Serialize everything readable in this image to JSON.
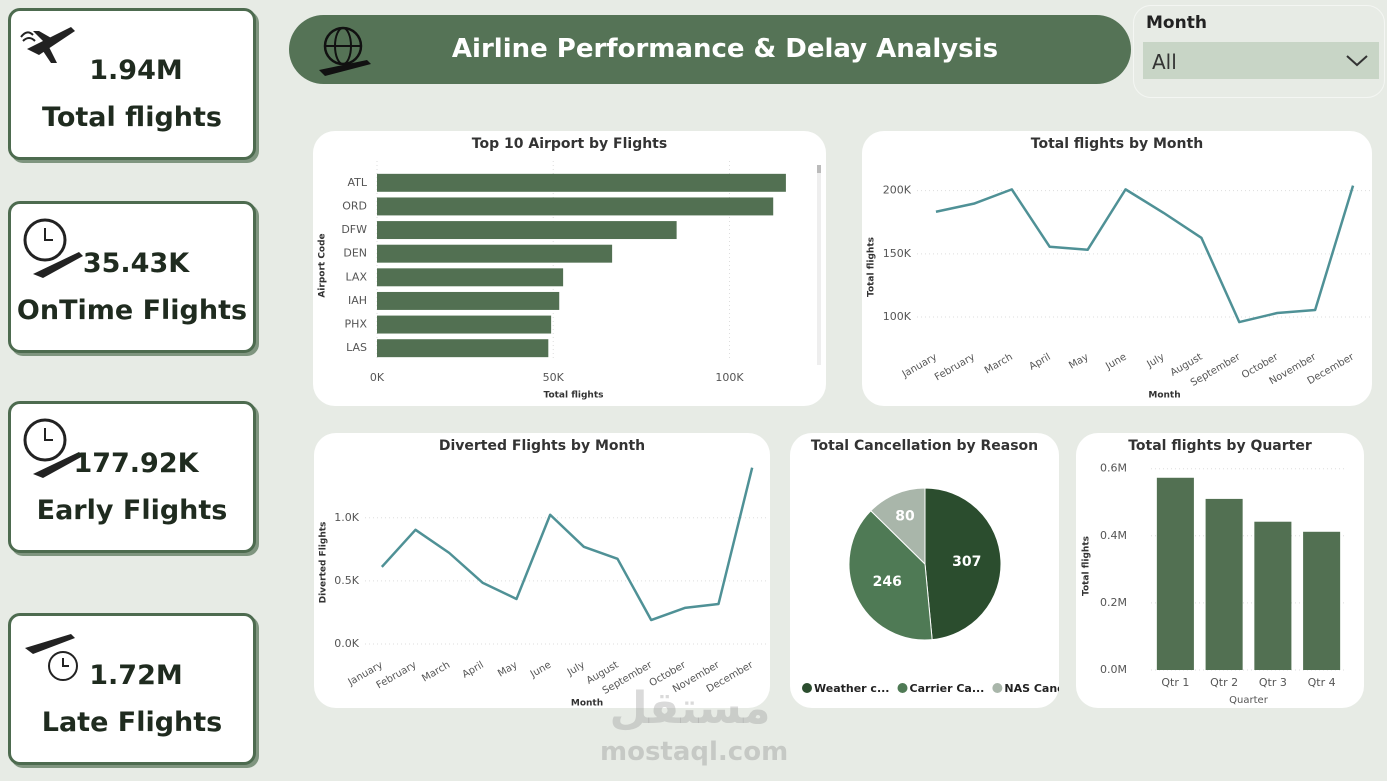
{
  "header": {
    "title": "Airline Performance & Delay Analysis"
  },
  "filter": {
    "label": "Month",
    "value": "All"
  },
  "cards": [
    {
      "value": "1.94M",
      "label": "Total flights"
    },
    {
      "value": "35.43K",
      "label": "OnTime Flights"
    },
    {
      "value": "177.92K",
      "label": "Early Flights"
    },
    {
      "value": "1.72M",
      "label": "Late Flights"
    }
  ],
  "watermark": {
    "arabic": "مستقل",
    "latin": "mostaql.com"
  },
  "chart_data": [
    {
      "type": "bar",
      "orientation": "horizontal",
      "title": "Top 10 Airport by Flights",
      "x_label": "Total flights",
      "y_label": "Airport Code",
      "categories": [
        "ATL",
        "ORD",
        "DFW",
        "DEN",
        "LAX",
        "IAH",
        "PHX",
        "LAS"
      ],
      "values": [
        116000,
        112400,
        85000,
        66700,
        52800,
        51700,
        49400,
        48600
      ],
      "color": "#527052",
      "xlim": [
        0,
        120000
      ],
      "xticks": [
        {
          "value": 0,
          "label": "0K"
        },
        {
          "value": 50000,
          "label": "50K"
        },
        {
          "value": 100000,
          "label": "100K"
        }
      ],
      "grid": true
    },
    {
      "type": "line",
      "title": "Total flights by Month",
      "x_label": "Month",
      "y_label": "Total flights",
      "categories": [
        "January",
        "February",
        "March",
        "April",
        "May",
        "June",
        "July",
        "August",
        "September",
        "October",
        "November",
        "December"
      ],
      "values": [
        183300,
        189700,
        201000,
        155600,
        153200,
        201000,
        182500,
        162700,
        96000,
        103200,
        105600,
        204000
      ],
      "color": "#4f9196",
      "ylim": [
        85000,
        210000
      ],
      "yticks": [
        {
          "value": 100000,
          "label": "100K"
        },
        {
          "value": 150000,
          "label": "150K"
        },
        {
          "value": 200000,
          "label": "200K"
        }
      ],
      "grid": true
    },
    {
      "type": "line",
      "title": "Diverted Flights by Month",
      "x_label": "Month",
      "y_label": "Diverted Flights",
      "categories": [
        "January",
        "February",
        "March",
        "April",
        "May",
        "June",
        "July",
        "August",
        "September",
        "October",
        "November",
        "December"
      ],
      "values": [
        611,
        905,
        722,
        484,
        357,
        1024,
        770,
        675,
        190,
        286,
        317,
        1397
      ],
      "color": "#4f9196",
      "ylim": [
        0,
        1450
      ],
      "yticks": [
        {
          "value": 0,
          "label": "0.0K"
        },
        {
          "value": 500,
          "label": "0.5K"
        },
        {
          "value": 1000,
          "label": "1.0K"
        }
      ],
      "grid": true
    },
    {
      "type": "pie",
      "title": "Total Cancellation by Reason",
      "categories": [
        "Weather c...",
        "Carrier Ca...",
        "NAS Canc..."
      ],
      "values": [
        307,
        246,
        80
      ],
      "colors": [
        "#2b4d2e",
        "#4f7a55",
        "#a9b6aa"
      ]
    },
    {
      "type": "bar",
      "orientation": "vertical",
      "title": "Total flights by Quarter",
      "x_label": "Quarter",
      "y_label": "Total flights",
      "categories": [
        "Qtr 1",
        "Qtr 2",
        "Qtr 3",
        "Qtr 4"
      ],
      "values": [
        573000,
        510000,
        442000,
        412000
      ],
      "color": "#527052",
      "ylim": [
        0,
        620000
      ],
      "yticks": [
        {
          "value": 0,
          "label": "0.0M"
        },
        {
          "value": 200000,
          "label": "0.2M"
        },
        {
          "value": 400000,
          "label": "0.4M"
        },
        {
          "value": 600000,
          "label": "0.6M"
        }
      ],
      "grid": true
    }
  ]
}
